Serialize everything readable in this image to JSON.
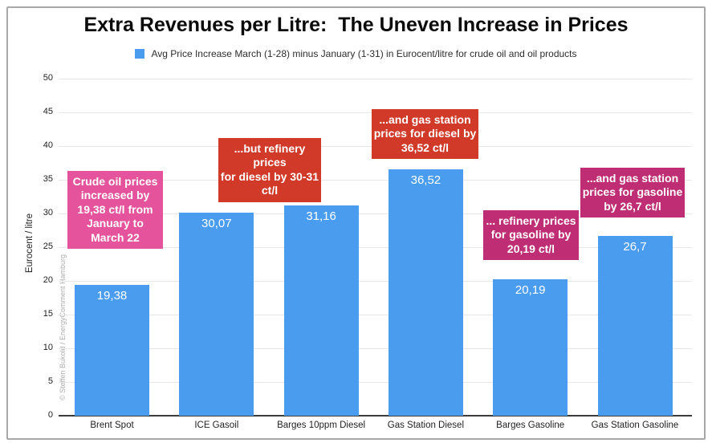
{
  "title": "Extra Revenues per Litre:  The Uneven Increase in Prices",
  "legend": {
    "swatch_color": "#4a9cef",
    "label": "Avg Price Increase March (1-28) minus January (1-31) in Eurocent/litre for crude oil and oil products"
  },
  "watermark": "© Steffen Bukold / EnergyComment Hamburg",
  "chart_data": {
    "type": "bar",
    "title": "Extra Revenues per Litre: The Uneven Increase in Prices",
    "subtitle": "Avg Price Increase March (1-28) minus January (1-31) in Eurocent/litre for crude oil and oil products",
    "categories": [
      "Brent Spot",
      "ICE Gasoil",
      "Barges 10ppm Diesel",
      "Gas Station Diesel",
      "Barges Gasoline",
      "Gas Station Gasoline"
    ],
    "values": [
      19.38,
      30.07,
      31.16,
      36.52,
      20.19,
      26.7
    ],
    "value_labels": [
      "19,38",
      "30,07",
      "31,16",
      "36,52",
      "20,19",
      "26,7"
    ],
    "xlabel": "",
    "ylabel": "Eurocent / litre",
    "ylim": [
      0,
      50
    ],
    "yticks": [
      0,
      5,
      10,
      15,
      20,
      25,
      30,
      35,
      40,
      45,
      50
    ],
    "grid": true,
    "legend_position": "top",
    "bar_color": "#4a9cef",
    "bar_label_color": "#ffffff",
    "annotations": [
      {
        "text": "Crude oil prices\nincreased by\n19,38 ct/l from\nJanuary to\nMarch 22",
        "color": "#e4539b",
        "refers_to": "Brent Spot"
      },
      {
        "text": "...but refinery prices\nfor diesel by 30-31\nct/l",
        "color": "#d13a28",
        "refers_to": "ICE Gasoil / Barges 10ppm Diesel"
      },
      {
        "text": "...and gas station\nprices for diesel by\n36,52 ct/l",
        "color": "#d13a28",
        "refers_to": "Gas Station Diesel"
      },
      {
        "text": "... refinery prices\nfor gasoline by\n20,19 ct/l",
        "color": "#bf2e74",
        "refers_to": "Barges Gasoline"
      },
      {
        "text": "...and gas station\nprices for gasoline\nby 26,7 ct/l",
        "color": "#bf2e74",
        "refers_to": "Gas Station Gasoline"
      }
    ]
  }
}
